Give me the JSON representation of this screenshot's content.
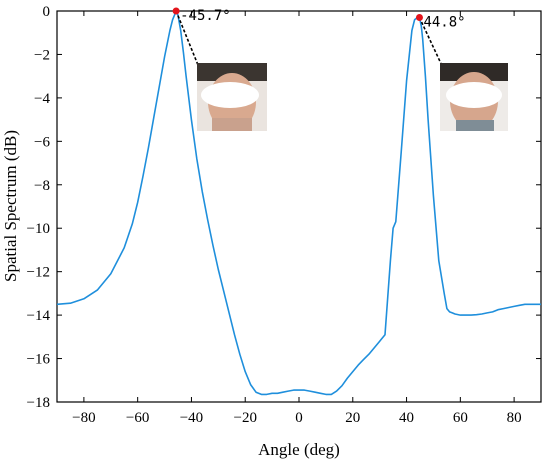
{
  "chart_data": {
    "type": "line",
    "title": "",
    "xlabel": "Angle (deg)",
    "ylabel": "Spatial Spectrum (dB)",
    "xlim": [
      -90,
      90
    ],
    "ylim": [
      -18,
      0
    ],
    "xticks": [
      -80,
      -60,
      -40,
      -20,
      0,
      20,
      40,
      60,
      80
    ],
    "yticks": [
      0,
      -2,
      -4,
      -6,
      -8,
      -10,
      -12,
      -14,
      -16,
      -18
    ],
    "grid": false,
    "legend": "none",
    "line_color": "#1f8fdc",
    "marker_color": "#e3141b",
    "series": [
      {
        "x": [
          -90,
          -85,
          -80,
          -75,
          -70,
          -65,
          -62,
          -60,
          -58,
          -56,
          -54,
          -52,
          -50,
          -48,
          -47,
          -46,
          -45.7,
          -45,
          -44,
          -43,
          -42,
          -40,
          -38,
          -36,
          -34,
          -32,
          -30,
          -28,
          -26,
          -24,
          -22,
          -20,
          -18,
          -16,
          -14,
          -12,
          -10,
          -8,
          -6,
          -4,
          -2,
          0,
          2,
          4,
          6,
          8,
          10,
          12,
          14,
          16,
          18,
          20,
          22,
          24,
          26,
          28,
          30,
          32,
          33,
          34,
          35,
          36,
          38,
          40,
          42,
          43,
          44,
          44.8,
          45.5,
          46,
          47,
          48,
          50,
          52,
          54,
          55,
          56,
          57,
          58,
          60,
          62,
          64,
          66,
          68,
          70,
          72,
          74,
          76,
          78,
          80,
          82,
          84,
          86,
          88,
          90
        ],
        "y": [
          -13.5,
          -13.45,
          -13.25,
          -12.85,
          -12.1,
          -10.9,
          -9.8,
          -8.8,
          -7.6,
          -6.3,
          -4.9,
          -3.5,
          -2.1,
          -0.9,
          -0.4,
          -0.1,
          0,
          -0.2,
          -0.9,
          -1.9,
          -3.0,
          -5.0,
          -6.8,
          -8.3,
          -9.6,
          -10.8,
          -11.9,
          -12.9,
          -13.9,
          -14.9,
          -15.8,
          -16.6,
          -17.2,
          -17.55,
          -17.65,
          -17.65,
          -17.6,
          -17.6,
          -17.55,
          -17.5,
          -17.45,
          -17.45,
          -17.45,
          -17.5,
          -17.55,
          -17.6,
          -17.65,
          -17.65,
          -17.5,
          -17.25,
          -16.9,
          -16.6,
          -16.3,
          -16.05,
          -15.8,
          -15.5,
          -15.2,
          -14.9,
          -13.2,
          -11.5,
          -10.0,
          -9.7,
          -6.5,
          -3.2,
          -0.9,
          -0.4,
          -0.3,
          -0.3,
          -0.7,
          -1.3,
          -3.0,
          -5.0,
          -8.5,
          -11.5,
          -13.0,
          -13.7,
          -13.85,
          -13.9,
          -13.95,
          -14.0,
          -14.0,
          -14.0,
          -13.98,
          -13.95,
          -13.9,
          -13.85,
          -13.75,
          -13.7,
          -13.65,
          -13.6,
          -13.55,
          -13.5,
          -13.5,
          -13.5,
          -13.5
        ]
      }
    ],
    "peaks": [
      {
        "x": -45.7,
        "y": 0,
        "label": "-45.7°"
      },
      {
        "x": 44.8,
        "y": -0.3,
        "label": "44.8°"
      }
    ]
  }
}
